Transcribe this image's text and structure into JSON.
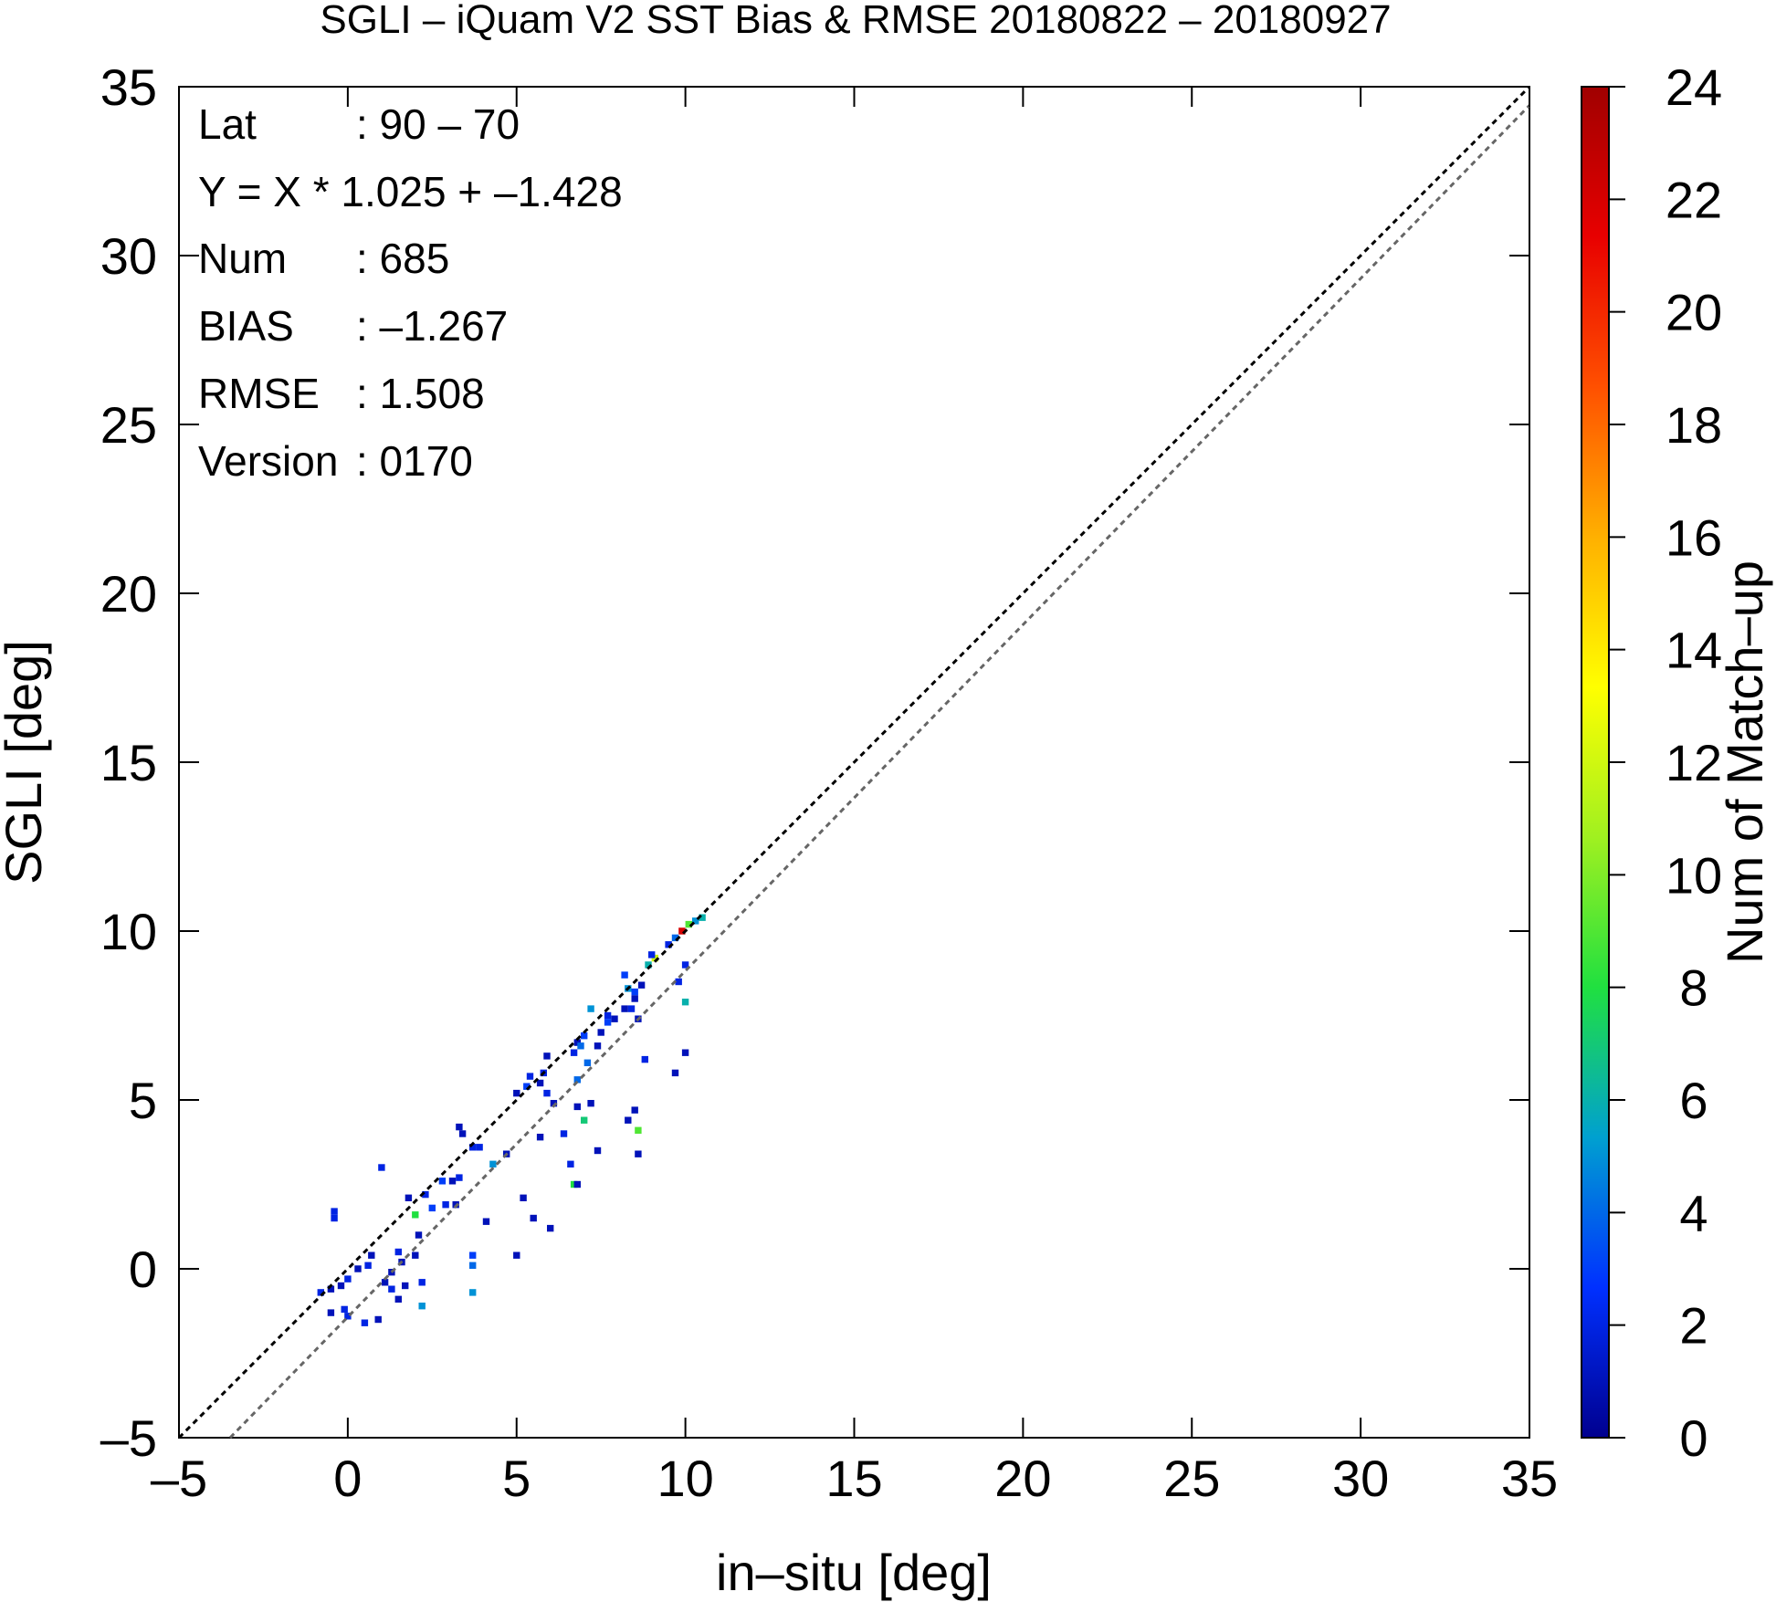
{
  "chart_data": {
    "type": "heatmap",
    "title": "SGLI – iQuam V2 SST Bias & RMSE 20180822 – 20180927",
    "xlabel": "in–situ [deg]",
    "ylabel": "SGLI [deg]",
    "colorbar_label": "Num of Match–up",
    "xlim": [
      -5,
      35
    ],
    "ylim": [
      -5,
      35
    ],
    "xticks": [
      -5,
      0,
      5,
      10,
      15,
      20,
      25,
      30,
      35
    ],
    "yticks": [
      -5,
      0,
      5,
      10,
      15,
      20,
      25,
      30,
      35
    ],
    "xtick_labels": [
      "–5",
      "0",
      "5",
      "10",
      "15",
      "20",
      "25",
      "30",
      "35"
    ],
    "ytick_labels": [
      "–5",
      "0",
      "5",
      "10",
      "15",
      "20",
      "25",
      "30",
      "35"
    ],
    "colorbar_range": [
      0,
      24
    ],
    "colorbar_ticks": [
      0,
      2,
      4,
      6,
      8,
      10,
      12,
      14,
      16,
      18,
      20,
      22,
      24
    ],
    "colormap": [
      "#00008f",
      "#0030ff",
      "#00a0d0",
      "#20e040",
      "#a0f020",
      "#ffff00",
      "#ffb000",
      "#ff5000",
      "#e80000",
      "#a00000"
    ],
    "reference_lines": [
      {
        "kind": "one-to-one",
        "slope": 1.0,
        "intercept": 0.0,
        "color": "#000000",
        "style": "dotted"
      },
      {
        "kind": "regression",
        "slope": 1.025,
        "intercept": -1.428,
        "color": "#666666",
        "style": "dotted"
      }
    ],
    "stats": [
      {
        "label": "Lat",
        "value": ": 90 – 70"
      },
      {
        "label": "Y = X * 1.025 + –1.428",
        "value": ""
      },
      {
        "label": "Num",
        "value": ": 685"
      },
      {
        "label": "BIAS",
        "value": ": –1.267"
      },
      {
        "label": "RMSE",
        "value": ": 1.508"
      },
      {
        "label": "Version",
        "value": ": 0170"
      }
    ],
    "bin_size": 0.2,
    "cells": [
      [
        10.4,
        10.3,
        6
      ],
      [
        10.0,
        10.1,
        9
      ],
      [
        9.8,
        9.9,
        22
      ],
      [
        9.6,
        9.7,
        4
      ],
      [
        10.2,
        10.2,
        5
      ],
      [
        9.4,
        9.5,
        2
      ],
      [
        9.0,
        9.1,
        12
      ],
      [
        8.8,
        8.9,
        6
      ],
      [
        8.6,
        8.3,
        1
      ],
      [
        8.2,
        8.2,
        5
      ],
      [
        8.4,
        8.1,
        3
      ],
      [
        8.4,
        7.9,
        1
      ],
      [
        8.3,
        7.6,
        2
      ],
      [
        8.1,
        7.6,
        1
      ],
      [
        8.5,
        7.3,
        1
      ],
      [
        7.8,
        7.3,
        1
      ],
      [
        7.6,
        7.2,
        3
      ],
      [
        7.4,
        6.9,
        1
      ],
      [
        6.9,
        6.8,
        3
      ],
      [
        6.7,
        6.6,
        1
      ],
      [
        6.8,
        6.5,
        4
      ],
      [
        6.6,
        6.3,
        2
      ],
      [
        5.8,
        6.2,
        1
      ],
      [
        5.7,
        5.7,
        2
      ],
      [
        5.6,
        5.4,
        1
      ],
      [
        5.2,
        5.3,
        3
      ],
      [
        5.8,
        5.1,
        2
      ],
      [
        6.0,
        4.8,
        1
      ],
      [
        6.7,
        5.5,
        4
      ],
      [
        6.7,
        4.7,
        1
      ],
      [
        6.9,
        4.3,
        7
      ],
      [
        7.1,
        4.8,
        1
      ],
      [
        8.2,
        4.3,
        1
      ],
      [
        8.4,
        4.6,
        1
      ],
      [
        8.5,
        4.0,
        9
      ],
      [
        8.5,
        3.3,
        1
      ],
      [
        7.3,
        3.4,
        1
      ],
      [
        6.3,
        3.9,
        2
      ],
      [
        6.5,
        3.0,
        2
      ],
      [
        6.6,
        2.4,
        8
      ],
      [
        6.7,
        2.4,
        1
      ],
      [
        5.6,
        3.8,
        1
      ],
      [
        4.6,
        3.3,
        1
      ],
      [
        4.2,
        3.0,
        5
      ],
      [
        3.8,
        3.5,
        2
      ],
      [
        3.6,
        3.5,
        2
      ],
      [
        3.3,
        3.9,
        1
      ],
      [
        3.2,
        2.6,
        2
      ],
      [
        3.0,
        2.5,
        1
      ],
      [
        2.7,
        2.5,
        3
      ],
      [
        2.2,
        2.1,
        2
      ],
      [
        1.7,
        2.0,
        1
      ],
      [
        3.1,
        1.8,
        1
      ],
      [
        2.8,
        1.8,
        2
      ],
      [
        2.4,
        1.7,
        3
      ],
      [
        1.9,
        1.5,
        8
      ],
      [
        0.9,
        2.9,
        2
      ],
      [
        4.0,
        1.3,
        1
      ],
      [
        5.1,
        2.0,
        1
      ],
      [
        5.4,
        1.4,
        1
      ],
      [
        5.9,
        1.1,
        1
      ],
      [
        -0.5,
        1.6,
        2
      ],
      [
        -0.5,
        1.4,
        2
      ],
      [
        2.0,
        0.9,
        1
      ],
      [
        3.6,
        0.3,
        3
      ],
      [
        3.6,
        0.0,
        4
      ],
      [
        3.6,
        -0.8,
        5
      ],
      [
        4.9,
        0.3,
        1
      ],
      [
        1.9,
        0.3,
        1
      ],
      [
        1.4,
        0.4,
        2
      ],
      [
        1.5,
        0.1,
        1
      ],
      [
        1.2,
        -0.2,
        1
      ],
      [
        1.0,
        -0.5,
        1
      ],
      [
        0.6,
        0.3,
        1
      ],
      [
        0.5,
        0.0,
        2
      ],
      [
        0.2,
        -0.1,
        1
      ],
      [
        -0.1,
        -0.4,
        2
      ],
      [
        -0.3,
        -0.6,
        1
      ],
      [
        -0.6,
        -0.7,
        1
      ],
      [
        -0.9,
        -0.8,
        2
      ],
      [
        1.2,
        -0.7,
        2
      ],
      [
        2.1,
        -0.5,
        2
      ],
      [
        2.1,
        -1.2,
        5
      ],
      [
        -0.2,
        -1.3,
        2
      ],
      [
        -0.1,
        -1.5,
        2
      ],
      [
        -0.6,
        -1.4,
        1
      ],
      [
        0.4,
        -1.7,
        2
      ],
      [
        0.8,
        -1.6,
        1
      ],
      [
        1.4,
        -1.0,
        1
      ],
      [
        1.6,
        -0.6,
        1
      ],
      [
        7.1,
        7.6,
        5
      ],
      [
        7.6,
        7.4,
        2
      ],
      [
        7.0,
        6.0,
        4
      ],
      [
        7.3,
        6.5,
        1
      ],
      [
        8.1,
        8.6,
        3
      ],
      [
        8.7,
        6.1,
        2
      ],
      [
        9.6,
        5.7,
        1
      ],
      [
        9.9,
        6.3,
        1
      ],
      [
        9.9,
        7.8,
        6
      ],
      [
        9.9,
        8.9,
        2
      ],
      [
        8.9,
        9.2,
        2
      ],
      [
        9.7,
        8.4,
        2
      ],
      [
        5.3,
        5.6,
        2
      ],
      [
        4.9,
        5.1,
        1
      ],
      [
        3.2,
        4.1,
        1
      ]
    ]
  }
}
